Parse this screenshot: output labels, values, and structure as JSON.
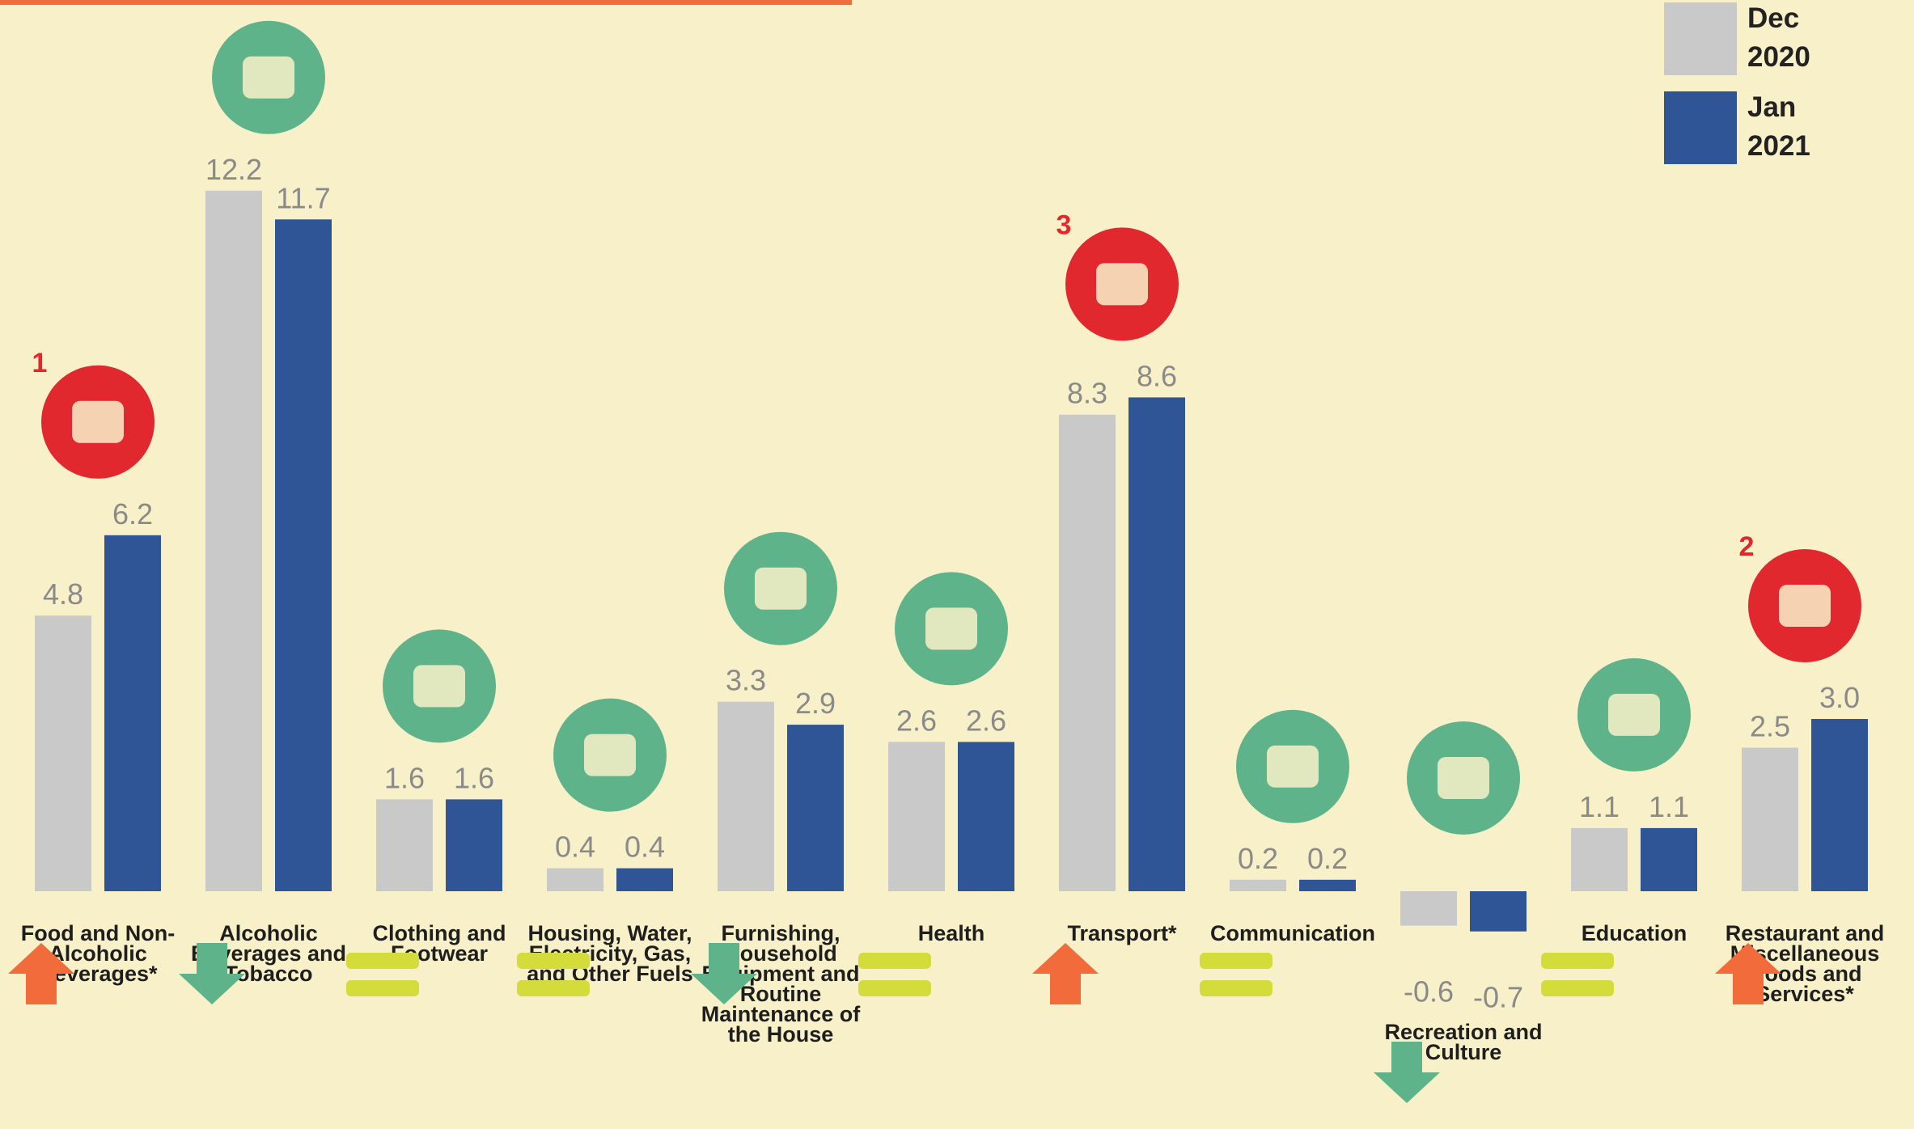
{
  "chart_data": {
    "type": "bar",
    "categories": [
      "Food and Non-Alcoholic Beverages*",
      "Alcoholic Beverages and Tobacco",
      "Clothing and Footwear",
      "Housing, Water, Electricity, Gas, and Other Fuels",
      "Furnishing, Household Equipment and Routine Maintenance of the House",
      "Health",
      "Transport*",
      "Communication",
      "Recreation and Culture",
      "Education",
      "Restaurant and Miscellaneous Goods and Services*"
    ],
    "series": [
      {
        "name": "Dec 2020",
        "color": "#c9c9c9",
        "values": [
          4.8,
          12.2,
          1.6,
          0.4,
          3.3,
          2.6,
          8.3,
          0.2,
          -0.6,
          1.1,
          2.5
        ],
        "value_labels": [
          "4.8",
          "12.2",
          "1.6",
          "0.4",
          "3.3",
          "2.6",
          "8.3",
          "0.2",
          "-0.6",
          "1.1",
          "2.5"
        ]
      },
      {
        "name": "Jan 2021",
        "color": "#2f5597",
        "values": [
          6.2,
          11.7,
          1.6,
          0.4,
          2.9,
          2.6,
          8.6,
          0.2,
          -0.7,
          1.1,
          3.0
        ],
        "value_labels": [
          "6.2",
          "11.7",
          "1.6",
          "0.4",
          "2.9",
          "2.6",
          "8.6",
          "0.2",
          "-0.7",
          "1.1",
          "3.0"
        ]
      }
    ],
    "trend": [
      "up",
      "down",
      "equal",
      "equal",
      "down",
      "equal",
      "up",
      "equal",
      "down",
      "equal",
      "up"
    ],
    "ranks": [
      "1",
      null,
      null,
      null,
      null,
      null,
      "3",
      null,
      null,
      null,
      "2"
    ]
  }
}
